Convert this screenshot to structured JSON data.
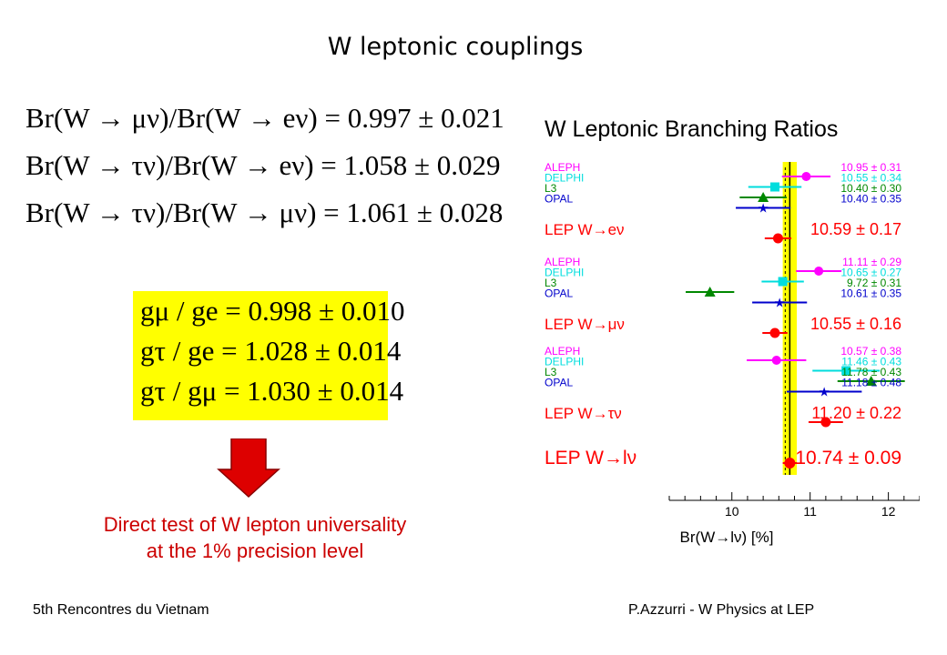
{
  "slide": {
    "title": "W leptonic couplings",
    "footer_left": "5th Rencontres du Vietnam",
    "footer_right": "P.Azzurri - W Physics at LEP",
    "conclusion_line1": "Direct test of W lepton universality",
    "conclusion_line2": "at the 1% precision level"
  },
  "ratios": [
    {
      "text": "Br(W → μν)/Br(W → eν) = 0.997 ± 0.021"
    },
    {
      "text": "Br(W → τν)/Br(W → eν) = 1.058 ± 0.029"
    },
    {
      "text": "Br(W → τν)/Br(W → μν) = 1.061 ± 0.028"
    }
  ],
  "couplings": [
    {
      "text": "gμ / ge = 0.998 ± 0.010"
    },
    {
      "text": "gτ / ge = 1.028 ± 0.014"
    },
    {
      "text": "gτ / gμ = 1.030 ± 0.014"
    }
  ],
  "colors": {
    "aleph": "#ff00ff",
    "delphi": "#00dddd",
    "l3": "#008800",
    "opal": "#0000cc",
    "lep": "#ff0000",
    "band": "#ffff00",
    "conclusion": "#cc0000"
  },
  "chart_data": {
    "type": "scatter",
    "title": "W Leptonic Branching Ratios",
    "xlabel": "Br(W→lν) [%]",
    "xlim": [
      9.2,
      12.4
    ],
    "xticks": [
      10,
      11,
      12
    ],
    "reference": {
      "value": 10.74,
      "error": 0.09
    },
    "groups": [
      {
        "entries": [
          {
            "exp": "ALEPH",
            "color": "#ff00ff",
            "marker": "circle",
            "value": 10.95,
            "error": 0.31,
            "label": "10.95 ±  0.31"
          },
          {
            "exp": "DELPHI",
            "color": "#00dddd",
            "marker": "square",
            "value": 10.55,
            "error": 0.34,
            "label": "10.55 ±  0.34"
          },
          {
            "exp": "L3",
            "color": "#008800",
            "marker": "triangle",
            "value": 10.4,
            "error": 0.3,
            "label": "10.40 ±  0.30"
          },
          {
            "exp": "OPAL",
            "color": "#0000cc",
            "marker": "star",
            "value": 10.4,
            "error": 0.35,
            "label": "10.40 ±  0.35"
          }
        ],
        "combined": {
          "name": "LEP W→eν",
          "value": 10.59,
          "error": 0.17,
          "label": "10.59 ±  0.17"
        }
      },
      {
        "entries": [
          {
            "exp": "ALEPH",
            "color": "#ff00ff",
            "marker": "circle",
            "value": 11.11,
            "error": 0.29,
            "label": "11.11 ±  0.29"
          },
          {
            "exp": "DELPHI",
            "color": "#00dddd",
            "marker": "square",
            "value": 10.65,
            "error": 0.27,
            "label": "10.65 ±  0.27"
          },
          {
            "exp": "L3",
            "color": "#008800",
            "marker": "triangle",
            "value": 9.72,
            "error": 0.31,
            "label": "9.72 ±  0.31"
          },
          {
            "exp": "OPAL",
            "color": "#0000cc",
            "marker": "star",
            "value": 10.61,
            "error": 0.35,
            "label": "10.61 ±  0.35"
          }
        ],
        "combined": {
          "name": "LEP W→μν",
          "value": 10.55,
          "error": 0.16,
          "label": "10.55 ±  0.16"
        }
      },
      {
        "entries": [
          {
            "exp": "ALEPH",
            "color": "#ff00ff",
            "marker": "circle",
            "value": 10.57,
            "error": 0.38,
            "label": "10.57 ±  0.38"
          },
          {
            "exp": "DELPHI",
            "color": "#00dddd",
            "marker": "square",
            "value": 11.46,
            "error": 0.43,
            "label": "11.46 ±  0.43"
          },
          {
            "exp": "L3",
            "color": "#008800",
            "marker": "triangle",
            "value": 11.78,
            "error": 0.43,
            "label": "11.78 ±  0.43"
          },
          {
            "exp": "OPAL",
            "color": "#0000cc",
            "marker": "star",
            "value": 11.18,
            "error": 0.48,
            "label": "11.18 ±  0.48"
          }
        ],
        "combined": {
          "name": "LEP W→τν",
          "value": 11.2,
          "error": 0.22,
          "label": "11.20 ±  0.22"
        }
      }
    ],
    "overall": {
      "name": "LEP W→lν",
      "value": 10.74,
      "error": 0.09,
      "label": "10.74 ±  0.09"
    }
  }
}
